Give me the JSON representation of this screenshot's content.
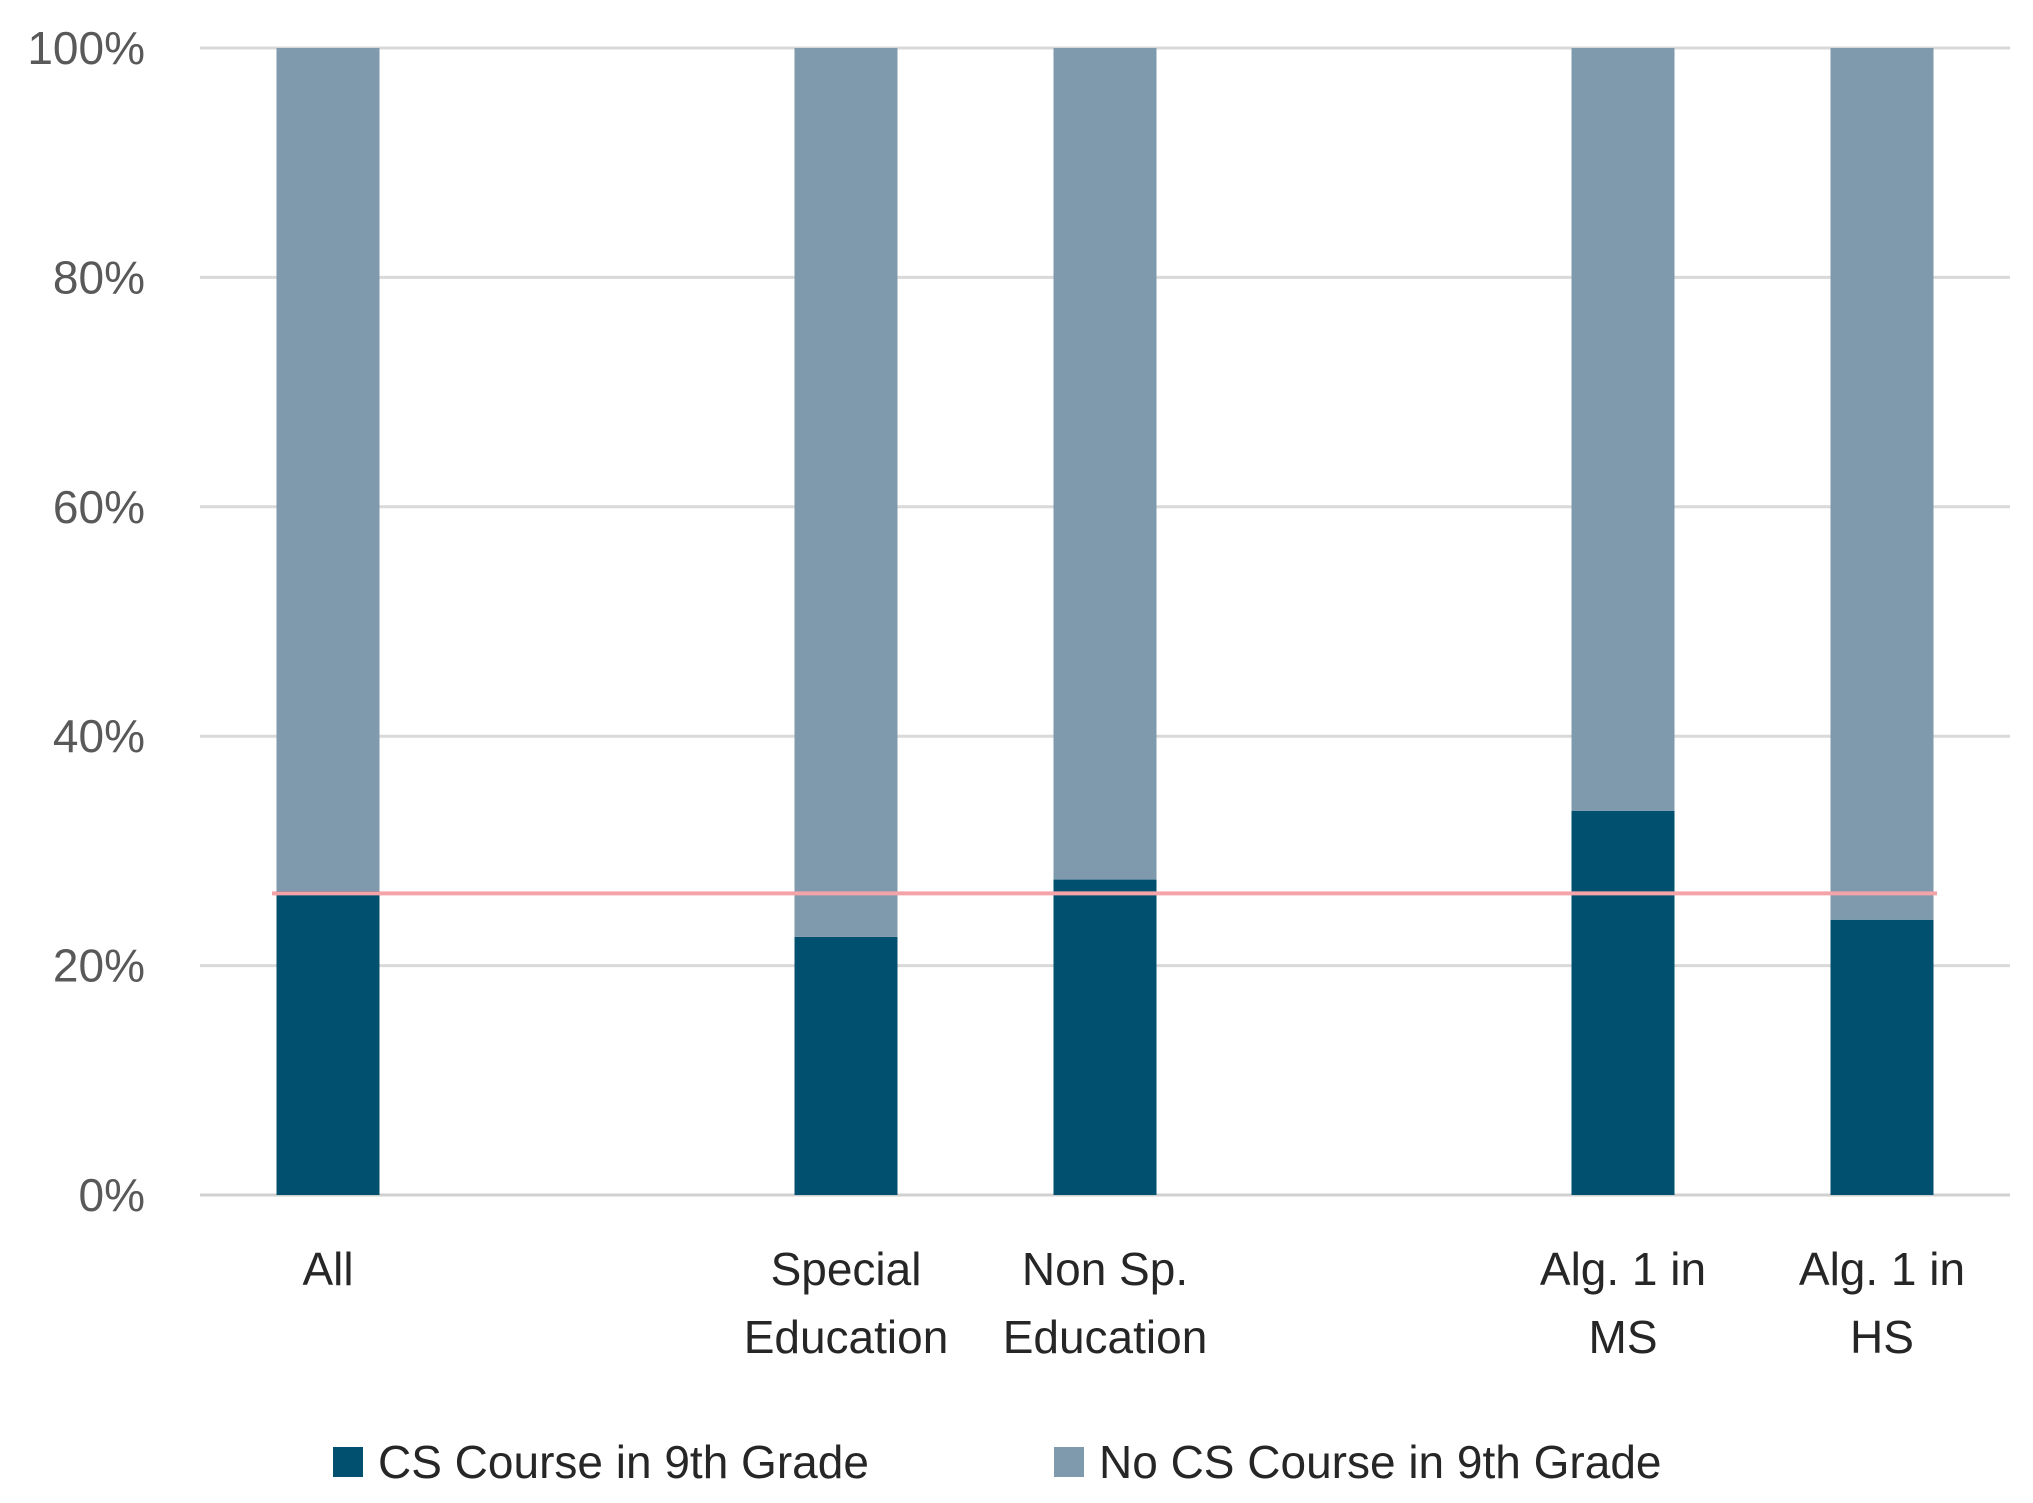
{
  "chart_data": {
    "type": "bar",
    "stacked": true,
    "percent_stacked": true,
    "categories": [
      [
        "All"
      ],
      [
        "Special",
        "Education"
      ],
      [
        "Non Sp.",
        "Education"
      ],
      [
        "Alg. 1 in",
        "MS"
      ],
      [
        "Alg. 1 in",
        "HS"
      ]
    ],
    "category_slots": [
      0,
      2,
      3,
      5,
      6
    ],
    "slot_count": 7,
    "series": [
      {
        "name": "CS Course in 9th Grade",
        "values": [
          26.5,
          22.5,
          27.5,
          33.5,
          24
        ],
        "color": "#01506f"
      },
      {
        "name": "No CS Course in 9th Grade",
        "values": [
          73.5,
          77.5,
          72.5,
          66.5,
          76
        ],
        "color": "#7f9aad"
      }
    ],
    "reference_line": {
      "value": 26.3,
      "color": "#f4a3a8"
    },
    "ylim": [
      0,
      100
    ],
    "yticks": [
      "0%",
      "20%",
      "40%",
      "60%",
      "80%",
      "100%"
    ],
    "ytick_values": [
      0,
      20,
      40,
      60,
      80,
      100
    ],
    "grid": true,
    "legend": "bottom",
    "title": "",
    "xlabel": "",
    "ylabel": ""
  }
}
